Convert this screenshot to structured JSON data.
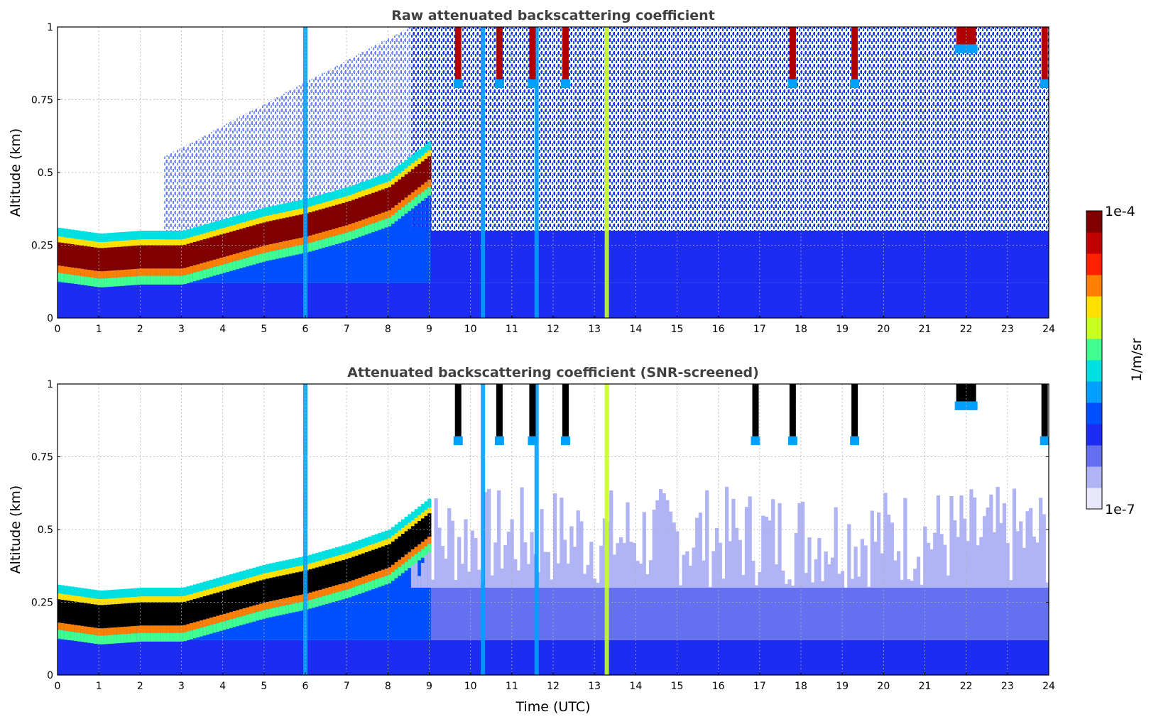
{
  "chart_data": [
    {
      "type": "heatmap",
      "title": "Raw attenuated backscattering coefficient",
      "ylabel": "Altitude (km)",
      "xlabel": "",
      "x_range": [
        0,
        24
      ],
      "y_range": [
        0,
        1
      ],
      "x_ticks": [
        "0",
        "1",
        "2",
        "3",
        "4",
        "5",
        "6",
        "7",
        "8",
        "9",
        "10",
        "11",
        "12",
        "13",
        "14",
        "15",
        "16",
        "17",
        "18",
        "19",
        "20",
        "21",
        "22",
        "23",
        "24"
      ],
      "y_ticks": [
        "0",
        "0.25",
        "0.5",
        "0.75",
        "1"
      ],
      "grid": true,
      "layer_time_utc": [
        0,
        1,
        2,
        3,
        4,
        5,
        6,
        7,
        8,
        9
      ],
      "layer_altitude_km": [
        0.22,
        0.2,
        0.21,
        0.21,
        0.25,
        0.29,
        0.32,
        0.36,
        0.41,
        0.52
      ],
      "vertical_streaks_time_utc": [
        6.0,
        10.3,
        11.6,
        13.3
      ],
      "upper_cloud_time_utc": [
        9.7,
        10.7,
        11.5,
        12.3,
        17.8,
        19.3,
        22.0,
        23.9
      ]
    },
    {
      "type": "heatmap",
      "title": "Attenuated backscattering coefficient (SNR-screened)",
      "ylabel": "Altitude (km)",
      "xlabel": "Time (UTC)",
      "x_range": [
        0,
        24
      ],
      "y_range": [
        0,
        1
      ],
      "x_ticks": [
        "0",
        "1",
        "2",
        "3",
        "4",
        "5",
        "6",
        "7",
        "8",
        "9",
        "10",
        "11",
        "12",
        "13",
        "14",
        "15",
        "16",
        "17",
        "18",
        "19",
        "20",
        "21",
        "22",
        "23",
        "24"
      ],
      "y_ticks": [
        "0",
        "0.25",
        "0.5",
        "0.75",
        "1"
      ],
      "grid": true,
      "layer_time_utc": [
        0,
        1,
        2,
        3,
        4,
        5,
        6,
        7,
        8,
        9
      ],
      "layer_altitude_km": [
        0.22,
        0.2,
        0.21,
        0.21,
        0.25,
        0.29,
        0.32,
        0.36,
        0.41,
        0.52
      ],
      "vertical_streaks_time_utc": [
        6.0,
        10.3,
        11.6,
        13.3
      ],
      "upper_cloud_time_utc": [
        9.7,
        10.7,
        11.5,
        12.3,
        16.9,
        17.8,
        19.3,
        22.0,
        23.9
      ]
    }
  ],
  "colorbar": {
    "min_label": "1e-7",
    "max_label": "1e-4",
    "unit": "1/m/sr",
    "scale": "log",
    "colormap": [
      "#e8e8fa",
      "#b0b4f4",
      "#6470f0",
      "#1c2cf0",
      "#0050ff",
      "#00a0ff",
      "#00e0e0",
      "#40ff90",
      "#c8ff20",
      "#ffe000",
      "#ff8000",
      "#ff2000",
      "#c00000",
      "#800000"
    ]
  }
}
